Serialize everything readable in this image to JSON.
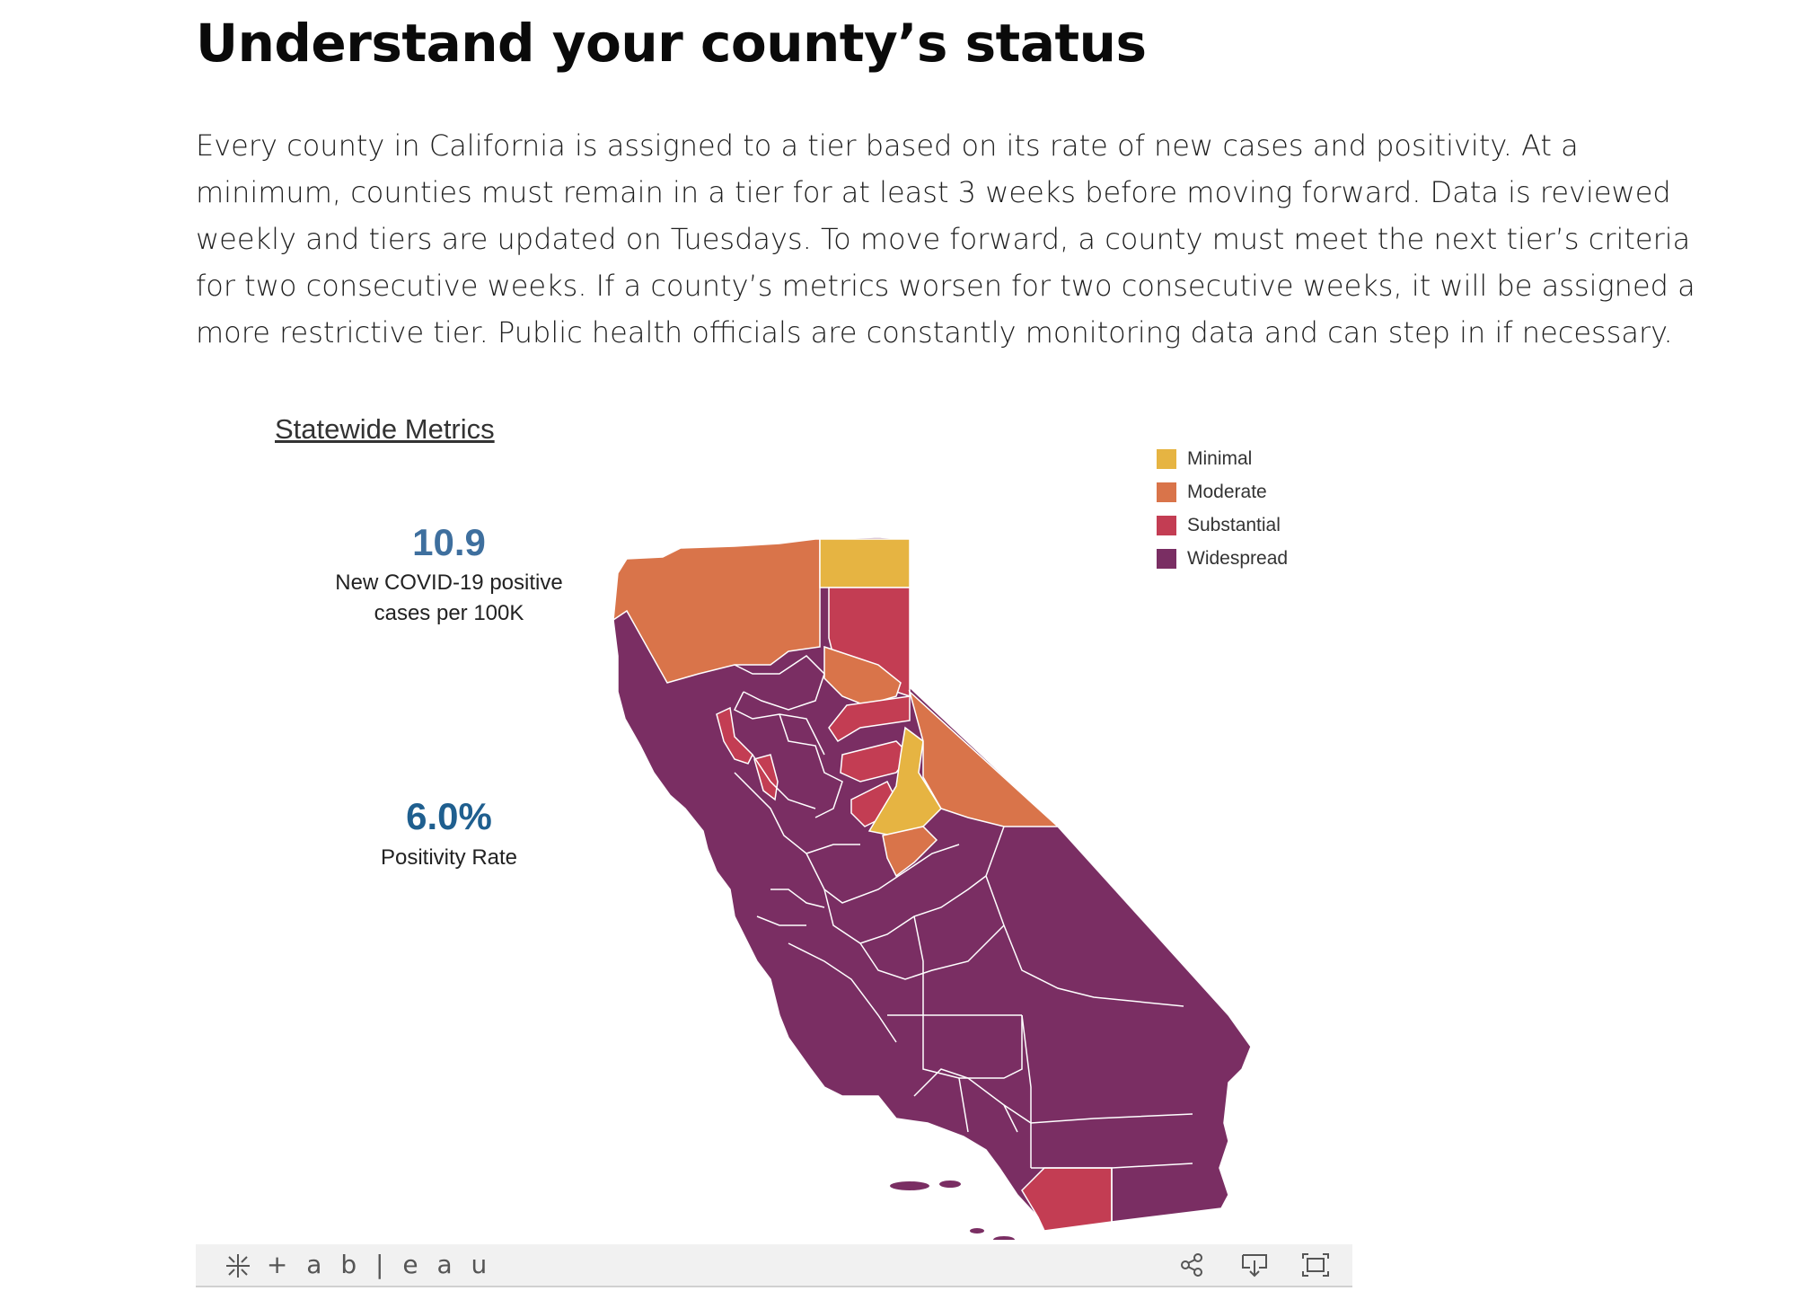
{
  "heading": "Understand your county’s status",
  "intro": "Every county in California is assigned to a tier based on its rate of new cases and positivity. At a minimum, counties must remain in a tier for at least 3 weeks before moving forward. Data is reviewed weekly and tiers are updated on Tuesdays. To move forward, a county must meet the next tier’s criteria for two consecutive weeks. If a county’s metrics worsen for two consecutive weeks, it will be assigned a more restrictive tier. Public health officials are constantly monitoring data and can step in if necessary.",
  "metrics": {
    "title": "Statewide Metrics",
    "case_rate": "10.9",
    "case_rate_label": "New COVID-19 positive cases per 100K",
    "positivity": "6.0%",
    "positivity_label": "Positivity Rate"
  },
  "legend": [
    {
      "label": "Minimal",
      "color": "#e6b442"
    },
    {
      "label": "Moderate",
      "color": "#d9744a"
    },
    {
      "label": "Substantial",
      "color": "#c33d53"
    },
    {
      "label": "Widespread",
      "color": "#7a2e63"
    }
  ],
  "toolbar": {
    "logo": "+ a b | e a u",
    "icons": [
      "share-icon",
      "download-icon",
      "fullscreen-icon"
    ]
  }
}
